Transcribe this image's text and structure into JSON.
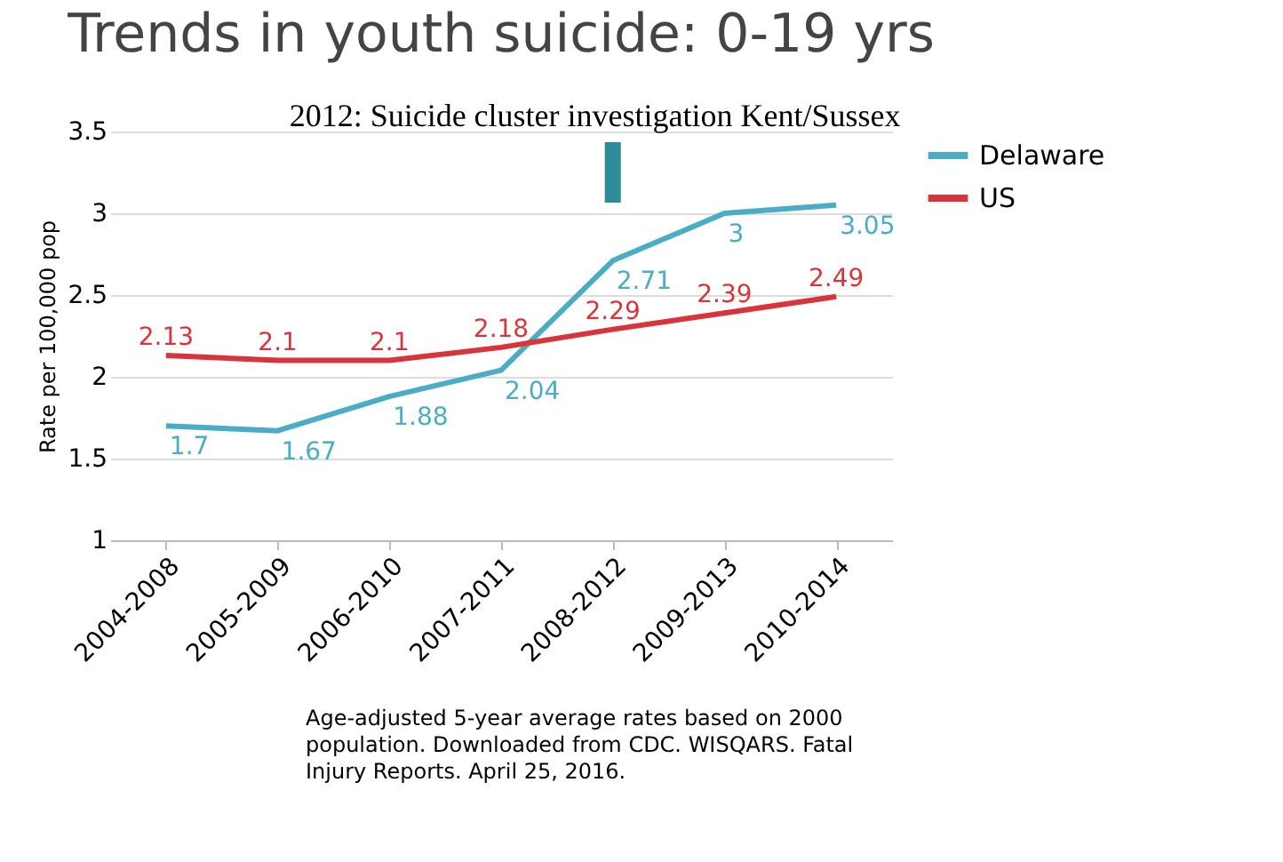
{
  "chart_data": {
    "type": "line",
    "title": "Trends in youth suicide: 0-19 yrs",
    "ylabel": "Rate per 100,000 pop",
    "categories": [
      "2004-2008",
      "2005-2009",
      "2006-2010",
      "2007-2011",
      "2008-2012",
      "2009-2013",
      "2010-2014"
    ],
    "series": [
      {
        "name": "Delaware",
        "color": "#4bacc6",
        "values": [
          1.7,
          1.67,
          1.88,
          2.04,
          2.71,
          3,
          3.05
        ]
      },
      {
        "name": "US",
        "color": "#d9343a",
        "values": [
          2.13,
          2.1,
          2.1,
          2.18,
          2.29,
          2.39,
          2.49
        ]
      }
    ],
    "ylim": [
      1,
      3.5
    ],
    "yticks": [
      1,
      1.5,
      2,
      2.5,
      3,
      3.5
    ],
    "grid": "y",
    "legend": "right",
    "data_labels": true,
    "marker": "none",
    "annotations": [
      "2012: Suicide cluster investigation Kent/Sussex",
      "Age-adjusted 5-year average rates based on 2000 population. Downloaded from CDC. WISQARS.  Fatal Injury Reports.  April 25, 2016."
    ]
  }
}
